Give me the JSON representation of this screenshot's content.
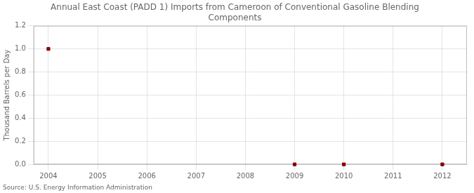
{
  "chart_data": {
    "type": "scatter",
    "title": "Annual East Coast (PADD 1) Imports from Cameroon of Conventional Gasoline Blending\nComponents",
    "ylabel": "Thousand Barrels per Day",
    "source": "Source: U.S. Energy Information Administration",
    "x": [
      2004,
      2009,
      2010,
      2012
    ],
    "values": [
      1.0,
      0.0,
      0.0,
      0.0
    ],
    "color": "#8b0000",
    "marker": "square",
    "xlim": [
      2003.7,
      2012.5
    ],
    "xticks": [
      2004,
      2005,
      2006,
      2007,
      2008,
      2009,
      2010,
      2011,
      2012
    ],
    "ylim": [
      0.0,
      1.2
    ],
    "yticks": [
      {
        "value": 0,
        "label": "0.0"
      },
      0.2,
      0.4,
      0.6,
      0.8,
      {
        "value": 1,
        "label": "1.0"
      },
      1.2
    ],
    "grid": true
  }
}
